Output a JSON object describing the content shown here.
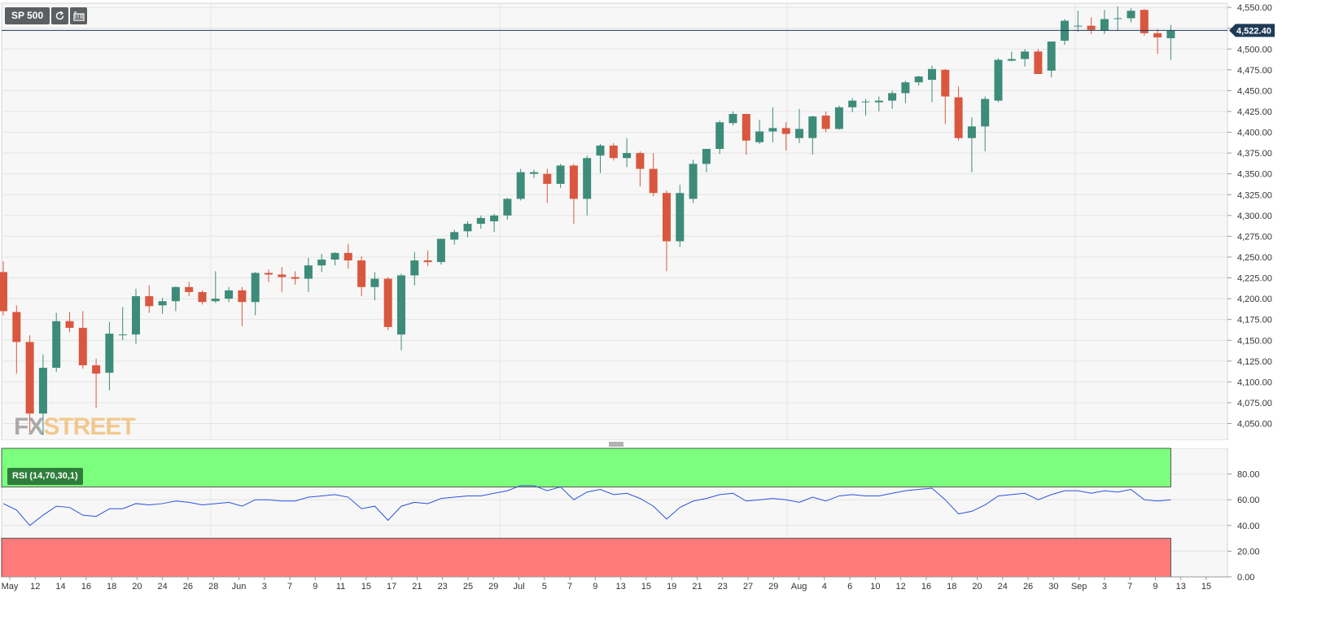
{
  "toolbar": {
    "symbol": "SP 500",
    "refresh_icon": "refresh-icon",
    "settings_icon": "chart-settings-icon"
  },
  "logo": {
    "part1": "FX",
    "part2": "STREET"
  },
  "colors": {
    "up": "#3d8c79",
    "down": "#d9573f",
    "rsi_line": "#2a52e0",
    "overbought": "#7cff7c",
    "oversold": "#ff7a7a",
    "price_line": "#1a3a5c"
  },
  "price_label": "4,522.40",
  "rsi": {
    "label": "RSI (14,70,30,1)",
    "overbought": 70,
    "oversold": 30
  },
  "chart_data": [
    {
      "type": "candlestick",
      "title": "SP 500",
      "ylim": [
        4030,
        4555
      ],
      "y_ticks": [
        "4,550.00",
        "4,525.00",
        "4,500.00",
        "4,475.00",
        "4,450.00",
        "4,425.00",
        "4,400.00",
        "4,375.00",
        "4,350.00",
        "4,325.00",
        "4,300.00",
        "4,275.00",
        "4,250.00",
        "4,225.00",
        "4,200.00",
        "4,175.00",
        "4,150.00",
        "4,125.00",
        "4,100.00",
        "4,075.00",
        "4,050.00"
      ],
      "x_ticks": [
        "May",
        "12",
        "14",
        "16",
        "18",
        "20",
        "24",
        "26",
        "28",
        "Jun",
        "3",
        "7",
        "9",
        "11",
        "15",
        "17",
        "21",
        "23",
        "25",
        "29",
        "Jul",
        "5",
        "7",
        "9",
        "13",
        "15",
        "19",
        "21",
        "23",
        "27",
        "29",
        "Aug",
        "4",
        "6",
        "10",
        "12",
        "16",
        "18",
        "20",
        "24",
        "26",
        "30",
        "Sep",
        "3",
        "7",
        "9",
        "13",
        "15"
      ],
      "last_price": 4522.4,
      "candles": [
        {
          "o": 4232,
          "h": 4245,
          "l": 4180,
          "c": 4185
        },
        {
          "o": 4184,
          "h": 4192,
          "l": 4110,
          "c": 4148
        },
        {
          "o": 4148,
          "h": 4156,
          "l": 4040,
          "c": 4062
        },
        {
          "o": 4062,
          "h": 4133,
          "l": 4036,
          "c": 4117
        },
        {
          "o": 4117,
          "h": 4183,
          "l": 4112,
          "c": 4173
        },
        {
          "o": 4173,
          "h": 4184,
          "l": 4160,
          "c": 4165
        },
        {
          "o": 4165,
          "h": 4185,
          "l": 4116,
          "c": 4120
        },
        {
          "o": 4120,
          "h": 4128,
          "l": 4069,
          "c": 4110
        },
        {
          "o": 4111,
          "h": 4172,
          "l": 4090,
          "c": 4158
        },
        {
          "o": 4157,
          "h": 4190,
          "l": 4150,
          "c": 4157
        },
        {
          "o": 4157,
          "h": 4212,
          "l": 4146,
          "c": 4203
        },
        {
          "o": 4203,
          "h": 4216,
          "l": 4183,
          "c": 4191
        },
        {
          "o": 4192,
          "h": 4201,
          "l": 4182,
          "c": 4197
        },
        {
          "o": 4197,
          "h": 4215,
          "l": 4185,
          "c": 4214
        },
        {
          "o": 4214,
          "h": 4220,
          "l": 4203,
          "c": 4208
        },
        {
          "o": 4208,
          "h": 4210,
          "l": 4193,
          "c": 4196
        },
        {
          "o": 4197,
          "h": 4233,
          "l": 4195,
          "c": 4200
        },
        {
          "o": 4200,
          "h": 4214,
          "l": 4196,
          "c": 4210
        },
        {
          "o": 4210,
          "h": 4214,
          "l": 4167,
          "c": 4196
        },
        {
          "o": 4196,
          "h": 4232,
          "l": 4180,
          "c": 4231
        },
        {
          "o": 4231,
          "h": 4235,
          "l": 4220,
          "c": 4229
        },
        {
          "o": 4229,
          "h": 4238,
          "l": 4208,
          "c": 4226
        },
        {
          "o": 4226,
          "h": 4233,
          "l": 4217,
          "c": 4224
        },
        {
          "o": 4224,
          "h": 4249,
          "l": 4208,
          "c": 4240
        },
        {
          "o": 4240,
          "h": 4254,
          "l": 4232,
          "c": 4247
        },
        {
          "o": 4247,
          "h": 4256,
          "l": 4240,
          "c": 4255
        },
        {
          "o": 4255,
          "h": 4266,
          "l": 4236,
          "c": 4246
        },
        {
          "o": 4246,
          "h": 4251,
          "l": 4203,
          "c": 4214
        },
        {
          "o": 4214,
          "h": 4232,
          "l": 4198,
          "c": 4224
        },
        {
          "o": 4224,
          "h": 4226,
          "l": 4162,
          "c": 4166
        },
        {
          "o": 4157,
          "h": 4230,
          "l": 4138,
          "c": 4228
        },
        {
          "o": 4228,
          "h": 4256,
          "l": 4216,
          "c": 4246
        },
        {
          "o": 4246,
          "h": 4258,
          "l": 4239,
          "c": 4244
        },
        {
          "o": 4244,
          "h": 4271,
          "l": 4241,
          "c": 4272
        },
        {
          "o": 4271,
          "h": 4283,
          "l": 4265,
          "c": 4280
        },
        {
          "o": 4281,
          "h": 4293,
          "l": 4274,
          "c": 4290
        },
        {
          "o": 4290,
          "h": 4300,
          "l": 4284,
          "c": 4297
        },
        {
          "o": 4293,
          "h": 4302,
          "l": 4280,
          "c": 4300
        },
        {
          "o": 4300,
          "h": 4321,
          "l": 4295,
          "c": 4320
        },
        {
          "o": 4320,
          "h": 4356,
          "l": 4318,
          "c": 4352
        },
        {
          "o": 4350,
          "h": 4355,
          "l": 4345,
          "c": 4352
        },
        {
          "o": 4350,
          "h": 4356,
          "l": 4315,
          "c": 4338
        },
        {
          "o": 4338,
          "h": 4362,
          "l": 4333,
          "c": 4360
        },
        {
          "o": 4360,
          "h": 4362,
          "l": 4290,
          "c": 4320
        },
        {
          "o": 4320,
          "h": 4372,
          "l": 4300,
          "c": 4369
        },
        {
          "o": 4372,
          "h": 4386,
          "l": 4351,
          "c": 4384
        },
        {
          "o": 4384,
          "h": 4387,
          "l": 4366,
          "c": 4369
        },
        {
          "o": 4369,
          "h": 4393,
          "l": 4358,
          "c": 4375
        },
        {
          "o": 4375,
          "h": 4377,
          "l": 4335,
          "c": 4356
        },
        {
          "o": 4356,
          "h": 4375,
          "l": 4323,
          "c": 4327
        },
        {
          "o": 4327,
          "h": 4330,
          "l": 4233,
          "c": 4269
        },
        {
          "o": 4269,
          "h": 4337,
          "l": 4262,
          "c": 4327
        },
        {
          "o": 4320,
          "h": 4367,
          "l": 4315,
          "c": 4362
        },
        {
          "o": 4362,
          "h": 4380,
          "l": 4352,
          "c": 4380
        },
        {
          "o": 4380,
          "h": 4414,
          "l": 4374,
          "c": 4412
        },
        {
          "o": 4411,
          "h": 4425,
          "l": 4408,
          "c": 4422
        },
        {
          "o": 4422,
          "h": 4422,
          "l": 4373,
          "c": 4390
        },
        {
          "o": 4388,
          "h": 4415,
          "l": 4386,
          "c": 4401
        },
        {
          "o": 4401,
          "h": 4430,
          "l": 4388,
          "c": 4405
        },
        {
          "o": 4405,
          "h": 4412,
          "l": 4378,
          "c": 4398
        },
        {
          "o": 4393,
          "h": 4428,
          "l": 4387,
          "c": 4404
        },
        {
          "o": 4393,
          "h": 4420,
          "l": 4373,
          "c": 4419
        },
        {
          "o": 4420,
          "h": 4425,
          "l": 4400,
          "c": 4404
        },
        {
          "o": 4404,
          "h": 4432,
          "l": 4403,
          "c": 4430
        },
        {
          "o": 4430,
          "h": 4441,
          "l": 4424,
          "c": 4438
        },
        {
          "o": 4437,
          "h": 4440,
          "l": 4420,
          "c": 4437
        },
        {
          "o": 4436,
          "h": 4443,
          "l": 4425,
          "c": 4438
        },
        {
          "o": 4438,
          "h": 4450,
          "l": 4428,
          "c": 4447
        },
        {
          "o": 4447,
          "h": 4462,
          "l": 4435,
          "c": 4460
        },
        {
          "o": 4460,
          "h": 4468,
          "l": 4456,
          "c": 4467
        },
        {
          "o": 4463,
          "h": 4480,
          "l": 4436,
          "c": 4476
        },
        {
          "o": 4475,
          "h": 4476,
          "l": 4410,
          "c": 4443
        },
        {
          "o": 4442,
          "h": 4455,
          "l": 4390,
          "c": 4393
        },
        {
          "o": 4393,
          "h": 4418,
          "l": 4352,
          "c": 4407
        },
        {
          "o": 4407,
          "h": 4443,
          "l": 4377,
          "c": 4440
        },
        {
          "o": 4438,
          "h": 4489,
          "l": 4436,
          "c": 4487
        },
        {
          "o": 4486,
          "h": 4497,
          "l": 4485,
          "c": 4488
        },
        {
          "o": 4488,
          "h": 4500,
          "l": 4479,
          "c": 4497
        },
        {
          "o": 4497,
          "h": 4500,
          "l": 4470,
          "c": 4470
        },
        {
          "o": 4474,
          "h": 4509,
          "l": 4466,
          "c": 4509
        },
        {
          "o": 4510,
          "h": 4536,
          "l": 4505,
          "c": 4534
        },
        {
          "o": 4528,
          "h": 4546,
          "l": 4521,
          "c": 4528
        },
        {
          "o": 4528,
          "h": 4538,
          "l": 4518,
          "c": 4523
        },
        {
          "o": 4522,
          "h": 4547,
          "l": 4518,
          "c": 4536
        },
        {
          "o": 4537,
          "h": 4551,
          "l": 4522,
          "c": 4537
        },
        {
          "o": 4537,
          "h": 4549,
          "l": 4532,
          "c": 4546
        },
        {
          "o": 4547,
          "h": 4548,
          "l": 4516,
          "c": 4519
        },
        {
          "o": 4519,
          "h": 4524,
          "l": 4494,
          "c": 4514
        },
        {
          "o": 4513,
          "h": 4529,
          "l": 4487,
          "c": 4522
        }
      ]
    },
    {
      "type": "line",
      "title": "RSI (14,70,30,1)",
      "ylim": [
        0,
        100
      ],
      "y_ticks": [
        "80.00",
        "60.00",
        "40.00",
        "20.00",
        "0.00"
      ],
      "series": [
        {
          "values": [
            57,
            52,
            40,
            48,
            55,
            54,
            48,
            47,
            53,
            53,
            57,
            56,
            57,
            59,
            58,
            56,
            57,
            58,
            55,
            60,
            60,
            59,
            59,
            62,
            63,
            64,
            62,
            53,
            55,
            44,
            55,
            58,
            57,
            61,
            62,
            63,
            63,
            65,
            67,
            71,
            71,
            67,
            70,
            60,
            66,
            68,
            64,
            65,
            61,
            55,
            45,
            54,
            59,
            61,
            64,
            65,
            59,
            60,
            61,
            60,
            58,
            62,
            59,
            63,
            64,
            63,
            63,
            65,
            67,
            68,
            69,
            60,
            49,
            51,
            56,
            63,
            64,
            65,
            60,
            64,
            67,
            67,
            65,
            67,
            66,
            68,
            60,
            59,
            60
          ]
        }
      ]
    }
  ]
}
